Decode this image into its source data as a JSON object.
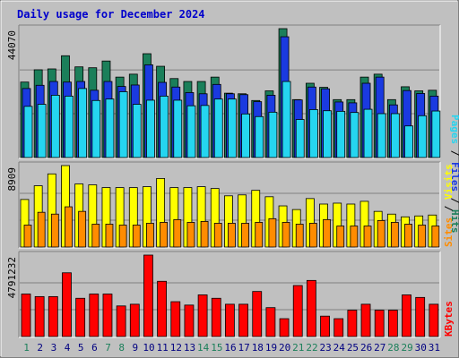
{
  "title": "Daily usage for December 2024",
  "colors": {
    "hits": "#1b7f5a",
    "files": "#1a3ae0",
    "pages": "#25d5f0",
    "visits": "#ffff00",
    "sites": "#ff8c00",
    "kbytes": "#ff0000",
    "weekday_label": "#000080",
    "weekend_label": "#1b7f5a",
    "title": "#0000cc"
  },
  "chart_data": [
    {
      "type": "bar",
      "panel": "hits-files-pages",
      "title": "Daily usage for December 2024",
      "ymax_label": "44070",
      "ylim": [
        0,
        44070
      ],
      "categories": [
        "1",
        "2",
        "3",
        "4",
        "5",
        "6",
        "7",
        "8",
        "9",
        "10",
        "11",
        "12",
        "13",
        "14",
        "15",
        "16",
        "17",
        "18",
        "19",
        "20",
        "21",
        "22",
        "23",
        "24",
        "25",
        "26",
        "27",
        "28",
        "29",
        "30",
        "31"
      ],
      "weekend_days": [
        "1",
        "7",
        "8",
        "14",
        "15",
        "21",
        "22",
        "28",
        "29"
      ],
      "legend": [
        "Hits",
        "Files",
        "Pages"
      ],
      "series": [
        {
          "name": "Hits",
          "values": [
            25800,
            30000,
            30300,
            34800,
            31000,
            30700,
            33000,
            27500,
            28500,
            35500,
            31200,
            27000,
            26000,
            26000,
            27500,
            22000,
            21800,
            19500,
            22800,
            44070,
            19800,
            25400,
            24000,
            19800,
            19800,
            27500,
            28500,
            19800,
            24200,
            22800,
            23000
          ]
        },
        {
          "name": "Files",
          "values": [
            23600,
            24700,
            26000,
            25800,
            26000,
            23000,
            26000,
            24300,
            24800,
            31700,
            25700,
            24100,
            22200,
            21800,
            25000,
            21800,
            21500,
            19100,
            21300,
            41300,
            19700,
            24100,
            23500,
            19000,
            18700,
            25400,
            27500,
            18000,
            22900,
            21900,
            21000
          ]
        },
        {
          "name": "Pages",
          "values": [
            17500,
            18200,
            21300,
            21000,
            23600,
            19500,
            20000,
            22500,
            18200,
            19600,
            21000,
            19600,
            17700,
            17800,
            20000,
            20000,
            14900,
            14000,
            15500,
            26000,
            13000,
            16400,
            16000,
            15800,
            15400,
            16500,
            15000,
            15000,
            10800,
            14300,
            15900
          ]
        }
      ]
    },
    {
      "type": "bar",
      "panel": "visits-sites",
      "ymax_label": "8909",
      "ylim": [
        0,
        8909
      ],
      "categories": [
        "1",
        "2",
        "3",
        "4",
        "5",
        "6",
        "7",
        "8",
        "9",
        "10",
        "11",
        "12",
        "13",
        "14",
        "15",
        "16",
        "17",
        "18",
        "19",
        "20",
        "21",
        "22",
        "23",
        "24",
        "25",
        "26",
        "27",
        "28",
        "29",
        "30",
        "31"
      ],
      "legend": [
        "Sites",
        "Visits"
      ],
      "series": [
        {
          "name": "Visits",
          "values": [
            5200,
            6700,
            8000,
            8909,
            6900,
            6800,
            6500,
            6500,
            6500,
            6600,
            7500,
            6500,
            6500,
            6600,
            6400,
            5600,
            5700,
            6200,
            5500,
            4500,
            4100,
            5300,
            4700,
            4800,
            4700,
            5000,
            3900,
            3600,
            3300,
            3400,
            3500
          ]
        },
        {
          "name": "Sites",
          "values": [
            2400,
            3800,
            3600,
            4400,
            3900,
            2500,
            2500,
            2400,
            2400,
            2600,
            2700,
            3000,
            2700,
            2800,
            2600,
            2600,
            2600,
            2700,
            3100,
            2700,
            2500,
            2600,
            3000,
            2300,
            2300,
            2300,
            2900,
            2700,
            2500,
            2400,
            2300
          ]
        }
      ]
    },
    {
      "type": "bar",
      "panel": "kbytes",
      "ymax_label": "4791232",
      "ylim": [
        0,
        4791232
      ],
      "categories": [
        "1",
        "2",
        "3",
        "4",
        "5",
        "6",
        "7",
        "8",
        "9",
        "10",
        "11",
        "12",
        "13",
        "14",
        "15",
        "16",
        "17",
        "18",
        "19",
        "20",
        "21",
        "22",
        "23",
        "24",
        "25",
        "26",
        "27",
        "28",
        "29",
        "30",
        "31"
      ],
      "legend": [
        "KBytes"
      ],
      "series": [
        {
          "name": "KBytes",
          "values": [
            2500000,
            2350000,
            2350000,
            3750000,
            2250000,
            2500000,
            2500000,
            1800000,
            1900000,
            4791232,
            3250000,
            2050000,
            1850000,
            2450000,
            2250000,
            1900000,
            1900000,
            2650000,
            1700000,
            1050000,
            3000000,
            3300000,
            1200000,
            1050000,
            1550000,
            1900000,
            1550000,
            1550000,
            2450000,
            2300000,
            1900000
          ]
        }
      ]
    }
  ]
}
